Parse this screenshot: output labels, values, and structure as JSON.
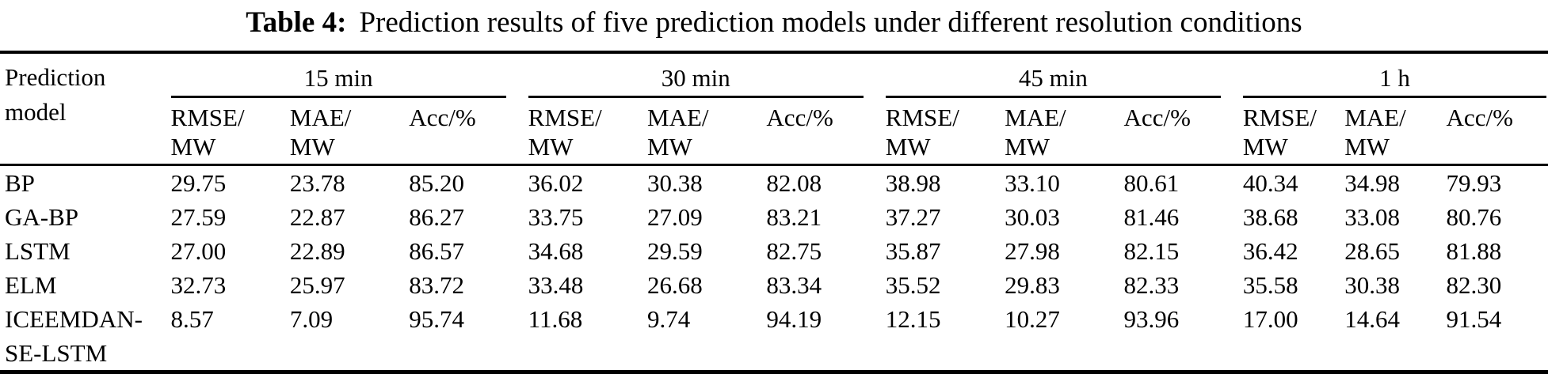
{
  "title": {
    "prefix": "Table 4:",
    "text": "Prediction results of five prediction models under different resolution conditions"
  },
  "table": {
    "row_header": "Prediction model",
    "groups": [
      {
        "label": "15 min"
      },
      {
        "label": "30 min"
      },
      {
        "label": "45 min"
      },
      {
        "label": "1 h"
      }
    ],
    "sub_headers": [
      "RMSE/\nMW",
      "MAE/\nMW",
      "Acc/%"
    ],
    "rows": [
      {
        "model": "BP",
        "values": [
          "29.75",
          "23.78",
          "85.20",
          "36.02",
          "30.38",
          "82.08",
          "38.98",
          "33.10",
          "80.61",
          "40.34",
          "34.98",
          "79.93"
        ]
      },
      {
        "model": "GA-BP",
        "values": [
          "27.59",
          "22.87",
          "86.27",
          "33.75",
          "27.09",
          "83.21",
          "37.27",
          "30.03",
          "81.46",
          "38.68",
          "33.08",
          "80.76"
        ]
      },
      {
        "model": "LSTM",
        "values": [
          "27.00",
          "22.89",
          "86.57",
          "34.68",
          "29.59",
          "82.75",
          "35.87",
          "27.98",
          "82.15",
          "36.42",
          "28.65",
          "81.88"
        ]
      },
      {
        "model": "ELM",
        "values": [
          "32.73",
          "25.97",
          "83.72",
          "33.48",
          "26.68",
          "83.34",
          "35.52",
          "29.83",
          "82.33",
          "35.58",
          "30.38",
          "82.30"
        ]
      },
      {
        "model": "ICEEMDAN-SE-LSTM",
        "values": [
          "8.57",
          "7.09",
          "95.74",
          "11.68",
          "9.74",
          "94.19",
          "12.15",
          "10.27",
          "93.96",
          "17.00",
          "14.64",
          "91.54"
        ]
      }
    ],
    "colors": {
      "rule": "#000000",
      "text": "#000000",
      "background": "#ffffff"
    }
  }
}
